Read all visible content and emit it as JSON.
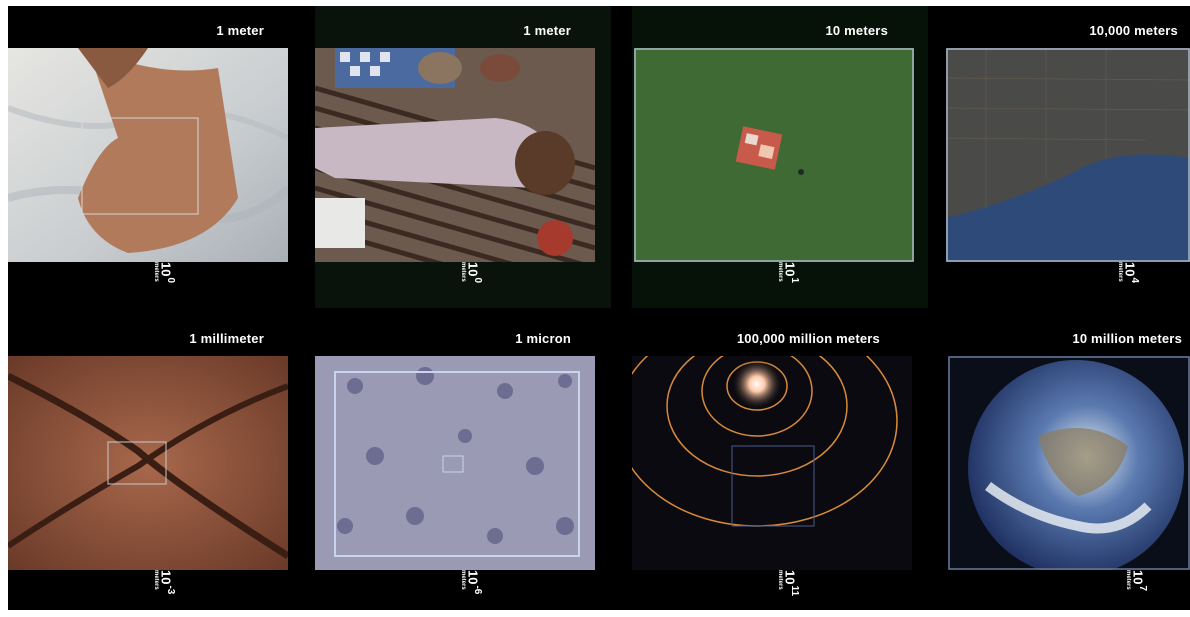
{
  "panels": [
    {
      "title": "1 meter",
      "exp": "0",
      "unit": "meters",
      "scene": "hand-on-fabric"
    },
    {
      "title": "1 meter",
      "exp": "0",
      "unit": "meters",
      "scene": "picnic-man"
    },
    {
      "title": "10  meters",
      "exp": "1",
      "unit": "meters",
      "scene": "picnic-on-lawn"
    },
    {
      "title": "10,000  meters",
      "exp": "4",
      "unit": "meters",
      "scene": "city-shoreline"
    },
    {
      "title": "1 millimeter",
      "exp": "-3",
      "unit": "meters",
      "scene": "skin-cells"
    },
    {
      "title": "1 micron",
      "exp": "-6",
      "unit": "meters",
      "scene": "cell-structure"
    },
    {
      "title": "100,000 million meters",
      "exp": "11",
      "unit": "meters",
      "scene": "solar-orbits"
    },
    {
      "title": "10 million meters",
      "exp": "7",
      "unit": "meters",
      "scene": "earth-globe"
    }
  ],
  "power_base": "10"
}
